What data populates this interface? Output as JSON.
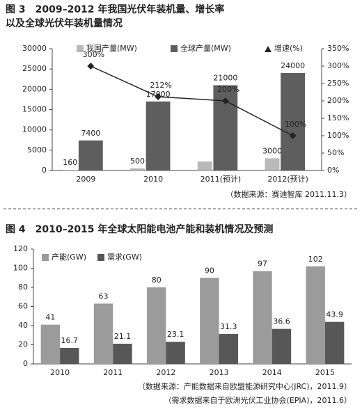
{
  "chart_data": [
    {
      "type": "bar",
      "title": [
        "图 3　2009–2012 年我国光伏年装机量、增长率",
        "以及全球光伏年装机量情况"
      ],
      "categories": [
        "2009",
        "2010",
        "2011(预计)",
        "2012(预计)"
      ],
      "series": [
        {
          "name": "我国产量(MW)",
          "color": "#b9b9b9",
          "values": [
            160,
            500,
            2200,
            3000
          ],
          "value_labels": [
            "160",
            "500",
            null,
            "3000"
          ]
        },
        {
          "name": "全球产量(MW)",
          "color": "#5e5e5e",
          "values": [
            7400,
            17000,
            21000,
            24000
          ]
        },
        {
          "name": "增速(%)",
          "color": "#222222",
          "axis": "y2",
          "values": [
            300,
            212,
            200,
            100
          ],
          "value_labels": [
            "300%",
            "212%",
            "200%",
            "100%"
          ]
        }
      ],
      "ylim": [
        0,
        30000
      ],
      "yticks": [
        0,
        5000,
        10000,
        15000,
        20000,
        25000,
        30000
      ],
      "y2lim": [
        0,
        350
      ],
      "y2ticks": [
        {
          "value": 0,
          "label": "0%"
        },
        {
          "value": 50,
          "label": "50%"
        },
        {
          "value": 100,
          "label": "100%"
        },
        {
          "value": 150,
          "label": "150%"
        },
        {
          "value": 200,
          "label": "200%"
        },
        {
          "value": 250,
          "label": "250%"
        },
        {
          "value": 300,
          "label": "300%"
        },
        {
          "value": 350,
          "label": "350%"
        }
      ],
      "source": [
        "（数据来源：赛迪智库 2011.11.3）"
      ]
    },
    {
      "type": "bar",
      "title": [
        "图 4　2010–2015 年全球太阳能电池产能和装机情况及预测"
      ],
      "categories": [
        "2010",
        "2011",
        "2012",
        "2013",
        "2014",
        "2015"
      ],
      "series": [
        {
          "name": "产能(GW)",
          "color": "#9b9b9b",
          "values": [
            41,
            63,
            80,
            90,
            97,
            102
          ]
        },
        {
          "name": "需求(GW)",
          "color": "#575757",
          "values": [
            16.7,
            21.1,
            23.1,
            31.3,
            36.6,
            43.9
          ]
        }
      ],
      "ylim": [
        0,
        120
      ],
      "yticks": [
        0,
        20,
        40,
        60,
        80,
        100,
        120
      ],
      "source": [
        "（数据来源：产能数据来自欧盟能源研究中心(JRC)，2011.9）",
        "（需求数据来自于欧洲光伏工业协会(EPIA)，2011.6）"
      ]
    }
  ]
}
